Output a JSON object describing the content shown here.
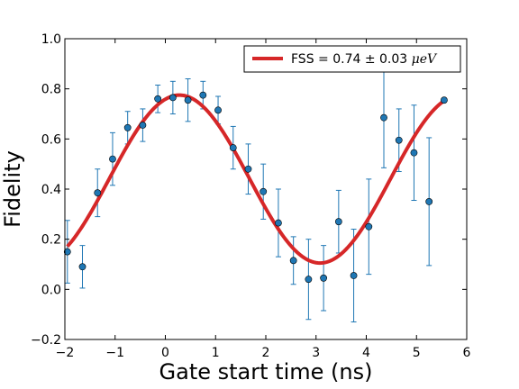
{
  "chart_data": {
    "type": "scatter",
    "title": "",
    "xlabel": "Gate start time (ns)",
    "ylabel": "Fidelity",
    "xlim": [
      -2,
      6
    ],
    "ylim": [
      -0.2,
      1.0
    ],
    "xticks": [
      -2,
      -1,
      0,
      1,
      2,
      3,
      4,
      5,
      6
    ],
    "yticks": [
      -0.2,
      0.0,
      0.2,
      0.4,
      0.6,
      0.8,
      1.0
    ],
    "xtick_labels": [
      "−2",
      "−1",
      "0",
      "1",
      "2",
      "3",
      "4",
      "5",
      "6"
    ],
    "ytick_labels": [
      "−0.2",
      "0.0",
      "0.2",
      "0.4",
      "0.6",
      "0.8",
      "1.0"
    ],
    "grid": false,
    "legend_placement": "top-right",
    "fit": {
      "label_prefix": "FSS = 0.74 ± 0.03 ",
      "label_unit": "μeV",
      "color": "#d62728",
      "model": "0.44 + 0.335*cos(2*pi*(t - 0.28)/5.6)",
      "x_range": [
        -1.95,
        5.55
      ]
    },
    "measurements": {
      "color": "#1f77b4",
      "x": [
        -1.95,
        -1.65,
        -1.35,
        -1.05,
        -0.75,
        -0.45,
        -0.15,
        0.15,
        0.45,
        0.75,
        1.05,
        1.35,
        1.65,
        1.95,
        2.25,
        2.55,
        2.85,
        3.15,
        3.45,
        3.75,
        4.05,
        4.35,
        4.65,
        4.95,
        5.25,
        5.55
      ],
      "y": [
        0.15,
        0.09,
        0.385,
        0.52,
        0.645,
        0.655,
        0.76,
        0.765,
        0.755,
        0.775,
        0.715,
        0.565,
        0.48,
        0.39,
        0.265,
        0.115,
        0.04,
        0.045,
        0.27,
        0.055,
        0.25,
        0.685,
        0.595,
        0.545,
        0.35,
        0.755
      ],
      "err": [
        0.125,
        0.085,
        0.095,
        0.105,
        0.065,
        0.065,
        0.055,
        0.065,
        0.085,
        0.055,
        0.055,
        0.085,
        0.1,
        0.11,
        0.135,
        0.095,
        0.16,
        0.13,
        0.125,
        0.185,
        0.19,
        0.2,
        0.125,
        0.19,
        0.255,
        0.0
      ]
    }
  }
}
